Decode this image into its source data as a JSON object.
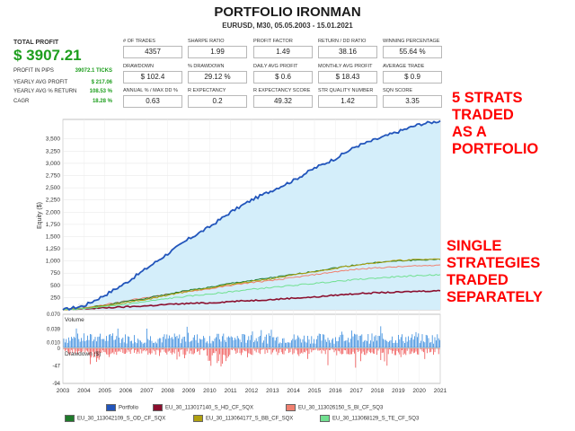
{
  "header": {
    "title": "PORTFOLIO IRONMAN",
    "subtitle": "EURUSD, M30, 05.05.2003 - 15.01.2021"
  },
  "summary": {
    "total_profit_label": "TOTAL PROFIT",
    "total_profit_value": "$ 3907.21",
    "rows": [
      {
        "label": "PROFIT IN PIPS",
        "value": "39072.1 TICKS"
      },
      {
        "label": "YEARLY AVG PROFIT",
        "value": "$ 217.06"
      },
      {
        "label": "YEARLY AVG % RETURN",
        "value": "108.53 %"
      },
      {
        "label": "CAGR",
        "value": "18.28 %"
      }
    ]
  },
  "stats": [
    {
      "label": "# OF TRADES",
      "value": "4357"
    },
    {
      "label": "SHARPE RATIO",
      "value": "1.99"
    },
    {
      "label": "PROFIT FACTOR",
      "value": "1.49"
    },
    {
      "label": "RETURN / DD RATIO",
      "value": "38.16"
    },
    {
      "label": "WINNING PERCENTAGE",
      "value": "55.64 %"
    },
    {
      "label": "DRAWDOWN",
      "value": "$ 102.4"
    },
    {
      "label": "% DRAWDOWN",
      "value": "29.12 %"
    },
    {
      "label": "DAILY AVG PROFIT",
      "value": "$ 0.6"
    },
    {
      "label": "MONTHLY AVG PROFIT",
      "value": "$ 18.43"
    },
    {
      "label": "AVERAGE TRADE",
      "value": "$ 0.9"
    },
    {
      "label": "ANNUAL % / MAX DD %",
      "value": "0.63"
    },
    {
      "label": "R EXPECTANCY",
      "value": "0.2"
    },
    {
      "label": "R EXPECTANCY SCORE",
      "value": "49.32"
    },
    {
      "label": "STR QUALITY NUMBER",
      "value": "1.42"
    },
    {
      "label": "SQN SCORE",
      "value": "3.35"
    }
  ],
  "annotations": {
    "portfolio": [
      "5 STRATS",
      "TRADED",
      "AS A",
      "PORTFOLIO"
    ],
    "single": [
      "SINGLE",
      "STRATEGIES",
      "TRADED",
      "SEPARATELY"
    ]
  },
  "colors": {
    "portfolio": "#2255bb",
    "s1": "#8b0f2e",
    "s2": "#f08070",
    "s3": "#1e7a2a",
    "s4": "#b0a010",
    "s5": "#70e090",
    "fill": "#d4eefa",
    "volume": "#3388dd",
    "drawdown": "#ee5050",
    "annotation": "#ff0000",
    "profit_green": "#1e9e1e"
  },
  "chart_data": [
    {
      "type": "line",
      "xlabel": "",
      "ylabel": "Equity ($)",
      "x": [
        "2003",
        "2004",
        "2005",
        "2006",
        "2007",
        "2008",
        "2009",
        "2010",
        "2011",
        "2012",
        "2013",
        "2014",
        "2015",
        "2016",
        "2017",
        "2018",
        "2019",
        "2020",
        "2021"
      ],
      "ylim": [
        0,
        3900
      ],
      "yticks": [
        250,
        500,
        750,
        1000,
        1250,
        1500,
        1750,
        2000,
        2250,
        2500,
        2750,
        3000,
        3250,
        3500
      ],
      "yticklabels": [
        "250",
        "500",
        "750",
        "1,000",
        "1,250",
        "1,500",
        "1,750",
        "2,000",
        "2,250",
        "2,500",
        "2,750",
        "3,000",
        "3,250",
        "3,500"
      ],
      "series": [
        {
          "name": "Portfolio",
          "color_key": "portfolio",
          "values": [
            0,
            80,
            300,
            550,
            850,
            1150,
            1450,
            1700,
            2000,
            2250,
            2450,
            2650,
            2900,
            3100,
            3350,
            3500,
            3650,
            3800,
            3870
          ]
        },
        {
          "name": "EU_30_113017140_S_HD_CF_SQX",
          "color_key": "s1",
          "values": [
            0,
            20,
            40,
            60,
            80,
            110,
            130,
            140,
            170,
            190,
            210,
            240,
            260,
            300,
            330,
            350,
            360,
            380,
            390
          ]
        },
        {
          "name": "EU_30_113026150_S_BI_CF_SQ3",
          "color_key": "s2",
          "values": [
            0,
            40,
            100,
            180,
            250,
            320,
            380,
            430,
            500,
            560,
            600,
            660,
            720,
            780,
            830,
            860,
            880,
            900,
            920
          ]
        },
        {
          "name": "EU_30_113042109_S_OD_CF_SQX",
          "color_key": "s3",
          "values": [
            0,
            30,
            90,
            170,
            240,
            320,
            400,
            460,
            540,
            600,
            660,
            720,
            790,
            860,
            920,
            970,
            1000,
            1020,
            1030
          ]
        },
        {
          "name": "EU_30_113064177_S_BB_CF_SQX",
          "color_key": "s4",
          "values": [
            0,
            30,
            80,
            150,
            210,
            300,
            380,
            450,
            520,
            580,
            640,
            710,
            780,
            850,
            920,
            970,
            1010,
            1030,
            1040
          ]
        },
        {
          "name": "EU_30_113068129_S_TE_CF_SQ3",
          "color_key": "s5",
          "values": [
            0,
            20,
            60,
            110,
            170,
            230,
            280,
            320,
            370,
            420,
            460,
            500,
            540,
            580,
            620,
            650,
            680,
            700,
            720
          ]
        }
      ]
    },
    {
      "type": "bar",
      "title": "Volume",
      "ylim": [
        0,
        0.07
      ],
      "yticklabels": [
        "0.070",
        "0.039",
        "0.010"
      ]
    },
    {
      "type": "bar",
      "title": "Drawdown ($)",
      "ylim": [
        -94,
        0
      ],
      "yticklabels": [
        "0",
        "-47",
        "-94"
      ]
    }
  ],
  "legend": [
    {
      "label": "Portfolio",
      "color_key": "portfolio"
    },
    {
      "label": "EU_30_113017140_S_HD_CF_SQX",
      "color_key": "s1"
    },
    {
      "label": "EU_30_113026150_S_BI_CF_SQ3",
      "color_key": "s2"
    },
    {
      "label": "EU_30_113042109_S_OD_CF_SQX",
      "color_key": "s3"
    },
    {
      "label": "EU_30_113064177_S_BB_CF_SQX",
      "color_key": "s4"
    },
    {
      "label": "EU_30_113068129_S_TE_CF_SQ3",
      "color_key": "s5"
    }
  ]
}
